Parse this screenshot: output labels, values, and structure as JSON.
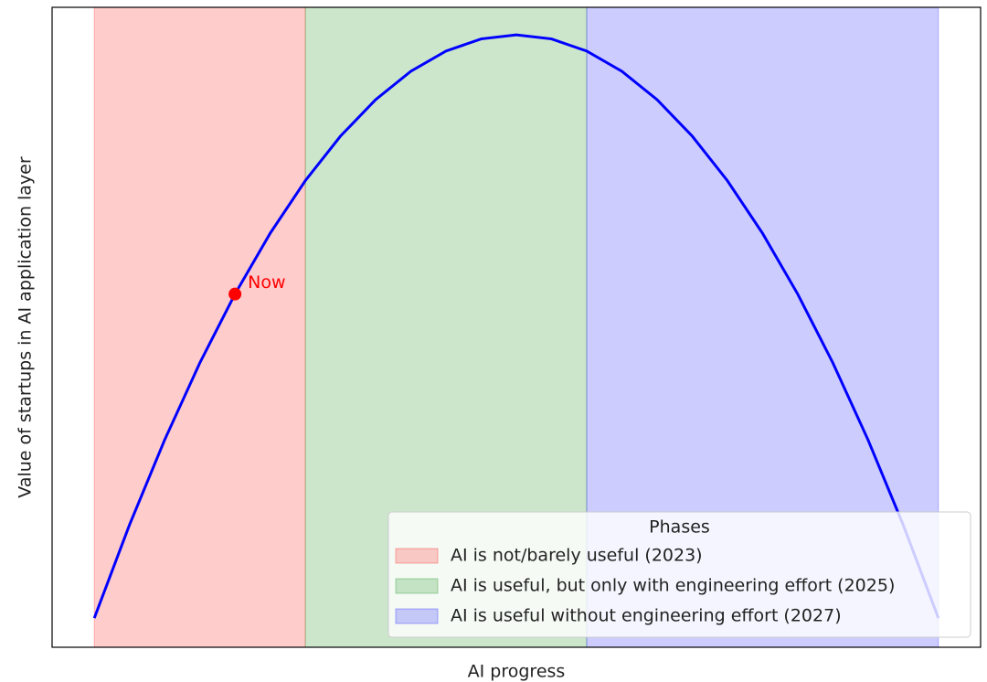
{
  "chart_data": {
    "type": "line",
    "xlabel": "AI progress",
    "ylabel": "Value of startups in AI application layer",
    "xlim": [
      -0.6,
      12.6
    ],
    "ylim": [
      -1.8,
      37.7
    ],
    "x": [
      0,
      0.5,
      1,
      1.5,
      2,
      2.5,
      3,
      3.5,
      4,
      4.5,
      5,
      5.5,
      6,
      6.5,
      7,
      7.5,
      8,
      8.5,
      9,
      9.5,
      10,
      10.5,
      11,
      11.5,
      12
    ],
    "series": [
      {
        "color": "#0000ff",
        "values": [
          0,
          5.75,
          11,
          15.75,
          20,
          23.75,
          27,
          29.75,
          32,
          33.75,
          35,
          35.75,
          36,
          35.75,
          35,
          33.75,
          32,
          29.75,
          27,
          23.75,
          20,
          15.75,
          11,
          5.75,
          0
        ]
      }
    ],
    "phases": [
      {
        "name": "AI is not/barely useful (2023)",
        "color": "#ff0000",
        "start": 0,
        "end": 3
      },
      {
        "name": "AI is useful, but only with engineering effort (2025)",
        "color": "#008000",
        "start": 3,
        "end": 7
      },
      {
        "name": "AI is useful without engineering effort (2027)",
        "color": "#0000ff",
        "start": 7,
        "end": 12
      }
    ],
    "legend_title": "Phases",
    "legend_position": "lower right",
    "annotation": {
      "text": "Now",
      "x": 2,
      "y": 20,
      "color": "#ff0000"
    }
  }
}
